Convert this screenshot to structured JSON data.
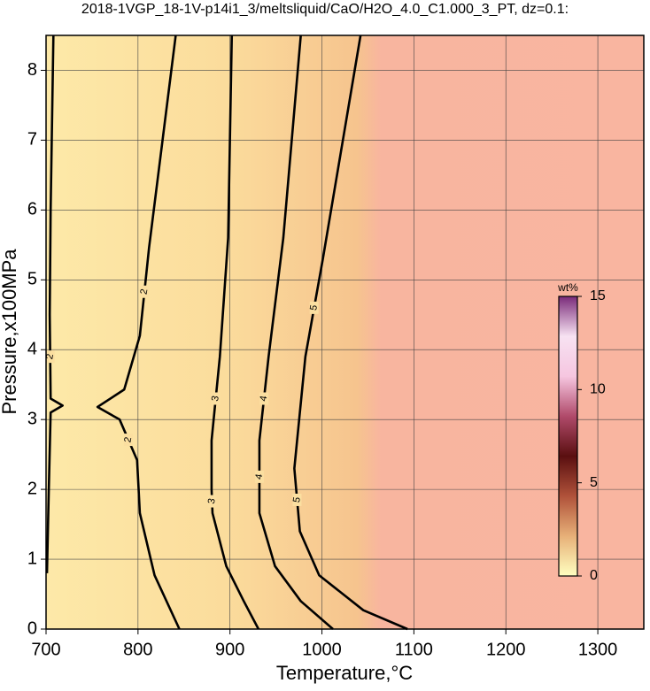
{
  "chart_data": {
    "type": "contour",
    "title": "2018-1VGP_18-1V-p14i1_3/meltsliquid/CaO/H2O_4.0_C1.000_3_PT, dz=0.1:",
    "x_label": "Temperature,°C",
    "y_label": "Pressure,x100MPa",
    "xlim": [
      700,
      1350
    ],
    "ylim": [
      0,
      8.5
    ],
    "xticks": [
      700,
      800,
      900,
      1000,
      1100,
      1200,
      1300
    ],
    "yticks": [
      0,
      1,
      2,
      3,
      4,
      5,
      6,
      7,
      8
    ],
    "grid": true,
    "contours": [
      {
        "level": 2,
        "x": [
          708,
          705,
          704,
          705,
          718,
          705,
          703,
          701
        ],
        "y": [
          8.5,
          6.0,
          4.5,
          3.3,
          3.2,
          3.1,
          2.0,
          0.8
        ]
      },
      {
        "level": 2,
        "x": [
          841,
          812,
          802,
          785,
          756,
          780,
          799,
          802,
          818,
          845
        ],
        "y": [
          8.5,
          5.46,
          4.2,
          3.43,
          3.18,
          3.0,
          2.42,
          1.66,
          0.77,
          0
        ]
      },
      {
        "level": 3,
        "x": [
          902,
          898,
          889,
          880,
          880,
          881,
          896,
          915,
          931
        ],
        "y": [
          8.5,
          5.6,
          3.9,
          2.7,
          2.0,
          1.66,
          0.9,
          0.4,
          0
        ]
      },
      {
        "level": 4,
        "x": [
          977,
          958,
          942,
          932,
          932,
          949,
          977,
          1012
        ],
        "y": [
          8.5,
          5.6,
          3.9,
          2.7,
          1.66,
          0.9,
          0.4,
          0
        ]
      },
      {
        "level": 5,
        "x": [
          1042,
          1001,
          982,
          970,
          976,
          997,
          1045,
          1093
        ],
        "y": [
          8.5,
          5.3,
          3.9,
          2.3,
          1.4,
          0.77,
          0.27,
          0
        ]
      }
    ],
    "colorbar": {
      "label": "wt%",
      "lim": [
        0,
        15
      ],
      "ticks": [
        0,
        5,
        10,
        15
      ],
      "colors": [
        "#ffffc0",
        "#e7b078",
        "#b0523a",
        "#5a0f10",
        "#b04a6a",
        "#f6c6e0",
        "#f7e2f2",
        "#7a2a7a"
      ]
    }
  }
}
